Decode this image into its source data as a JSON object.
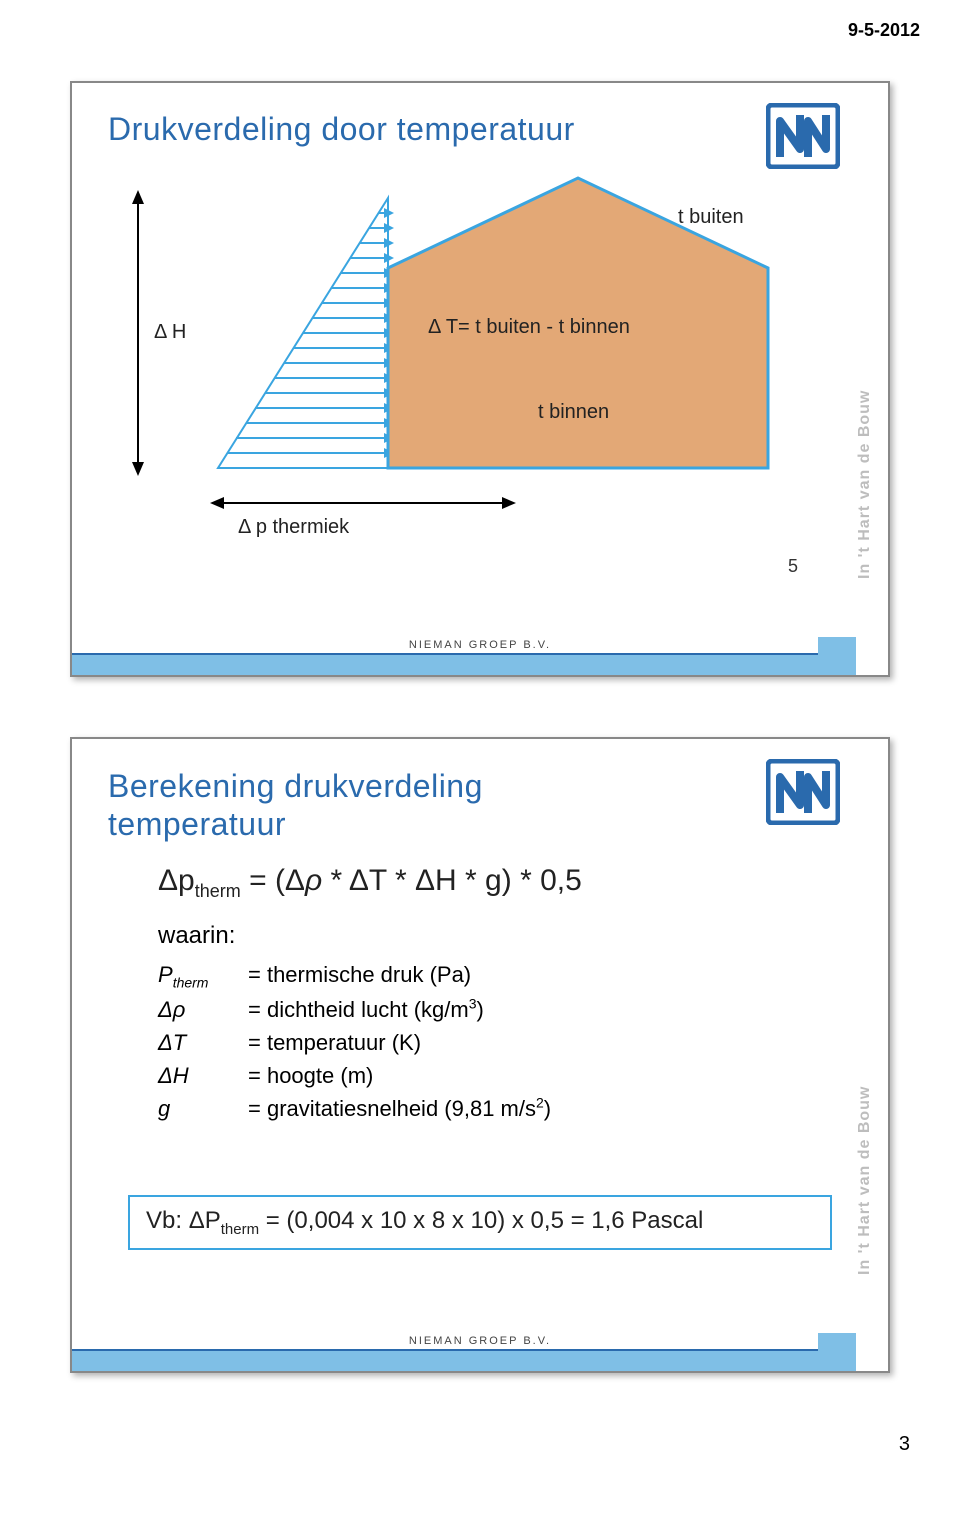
{
  "header_date": "9-5-2012",
  "footer_brand": "NIEMAN GROEP B.V.",
  "side_text": "In 't Hart van de Bouw",
  "page_number": "3",
  "slide1": {
    "number": "5",
    "title": "Drukverdeling door temperatuur",
    "diagram": {
      "label_dH": "Δ H",
      "label_dT_eq": "Δ T=  t buiten - t binnen",
      "label_t_buiten": "t buiten",
      "label_t_binnen": "t binnen",
      "label_dp": "Δ p  thermiek",
      "house_fill": "#e3a876",
      "house_stroke": "#3aa5e0",
      "arrow_line_color": "#3aa5e0",
      "triangle_stroke": "#3aa5e0",
      "text_color": "#222222"
    }
  },
  "slide2": {
    "title": "Berekening drukverdeling temperatuur",
    "formula_html": "Δp<sub>therm</sub> = (Δ<i>ρ</i> * ΔT * ΔH * g) * 0,5",
    "waarin_label": "waarin:",
    "defs": [
      {
        "sym_html": "P<sub>therm</sub>",
        "txt_html": "= thermische druk (Pa)"
      },
      {
        "sym_html": "Δρ",
        "txt_html": "= dichtheid lucht (kg/m<sup>3</sup>)"
      },
      {
        "sym_html": "ΔT",
        "txt_html": "= temperatuur (K)"
      },
      {
        "sym_html": "ΔH",
        "txt_html": "= hoogte (m)"
      },
      {
        "sym_html": "g",
        "txt_html": "= gravitatiesnelheid (9,81 m/s<sup>2</sup>)"
      }
    ],
    "example_html": "Vb: ΔP<sub>therm</sub> = (0,004 x 10 x 8 x 10) x 0,5 = 1,6 Pascal"
  },
  "logo": {
    "fill": "#2a6aad"
  }
}
